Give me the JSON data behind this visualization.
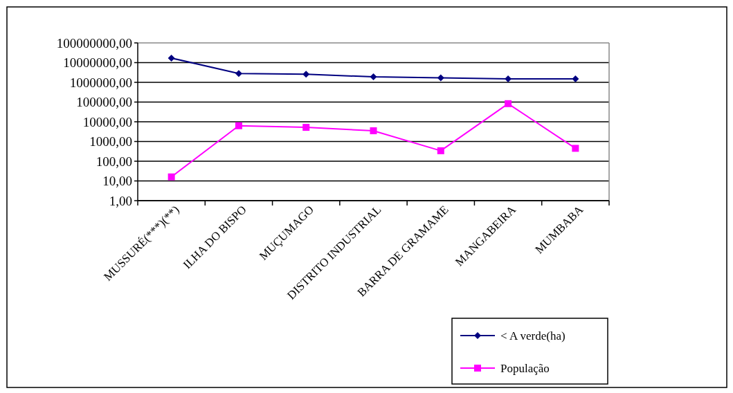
{
  "chart_data": {
    "type": "line",
    "categories": [
      "MUSSURÉ(***)(**)",
      "ILHA DO BISPO",
      "MUÇUMAGO",
      "DISTRITO INDUSTRIAL",
      "BARRA DE GRAMAME",
      "MANGABEIRA",
      "MUMBABA"
    ],
    "series": [
      {
        "name": "< A verde(ha)",
        "color": "#000080",
        "marker": "diamond",
        "values": [
          17000000,
          2800000,
          2600000,
          1900000,
          1700000,
          1500000,
          1500000
        ]
      },
      {
        "name": "População",
        "color": "#ff00ff",
        "marker": "square",
        "values": [
          16,
          6300,
          5200,
          3500,
          340,
          83000,
          450
        ]
      }
    ],
    "log": true,
    "ylim": [
      1,
      100000000
    ],
    "yticks": [
      {
        "value": 1,
        "label": "1,00"
      },
      {
        "value": 10,
        "label": "10,00"
      },
      {
        "value": 100,
        "label": "100,00"
      },
      {
        "value": 1000,
        "label": "1000,00"
      },
      {
        "value": 10000,
        "label": "10000,00"
      },
      {
        "value": 100000,
        "label": "100000,00"
      },
      {
        "value": 1000000,
        "label": "1000000,00"
      },
      {
        "value": 10000000,
        "label": "10000000,00"
      },
      {
        "value": 100000000,
        "label": "100000000,00"
      }
    ],
    "grid": "y",
    "legend": "bottom right",
    "line_style": "solid"
  }
}
